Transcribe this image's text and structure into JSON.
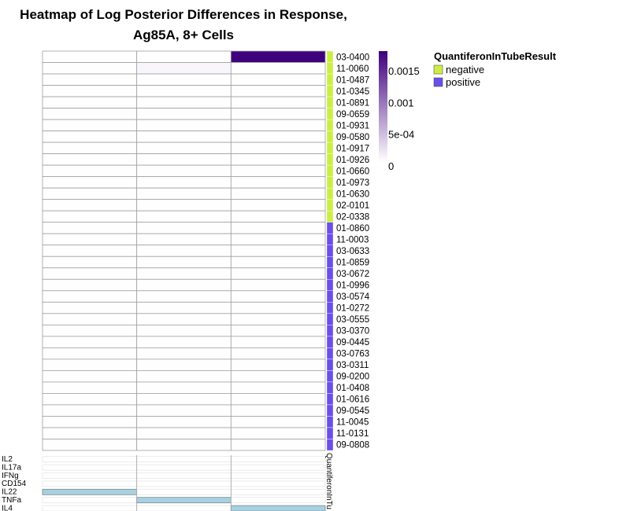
{
  "chart_data": {
    "type": "heatmap",
    "title_lines": [
      "Heatmap of Log Posterior Differences in Response,",
      "Ag85A, 8+ Cells"
    ],
    "rows": [
      "03-0400",
      "11-0060",
      "01-0487",
      "01-0345",
      "01-0891",
      "09-0659",
      "01-0931",
      "09-0580",
      "01-0917",
      "01-0926",
      "01-0660",
      "01-0973",
      "01-0630",
      "02-0101",
      "02-0338",
      "01-0860",
      "11-0003",
      "03-0633",
      "01-0859",
      "03-0672",
      "01-0996",
      "03-0574",
      "01-0272",
      "03-0555",
      "03-0370",
      "09-0445",
      "03-0763",
      "03-0311",
      "09-0200",
      "01-0408",
      "01-0616",
      "09-0545",
      "11-0045",
      "11-0131",
      "09-0808"
    ],
    "row_group": [
      "negative",
      "negative",
      "negative",
      "negative",
      "negative",
      "negative",
      "negative",
      "negative",
      "negative",
      "negative",
      "negative",
      "negative",
      "negative",
      "negative",
      "negative",
      "positive",
      "positive",
      "positive",
      "positive",
      "positive",
      "positive",
      "positive",
      "positive",
      "positive",
      "positive",
      "positive",
      "positive",
      "positive",
      "positive",
      "positive",
      "positive",
      "positive",
      "positive",
      "positive",
      "positive"
    ],
    "columns": 3,
    "values": [
      [
        1e-05,
        1e-05,
        0.00175
      ],
      [
        1e-05,
        6e-05,
        1e-05
      ],
      [
        1e-05,
        1e-05,
        1e-05
      ],
      [
        1e-05,
        1e-05,
        1e-05
      ],
      [
        1e-05,
        1e-05,
        1e-05
      ],
      [
        1e-05,
        1e-05,
        1e-05
      ],
      [
        1e-05,
        1e-05,
        1e-05
      ],
      [
        1e-05,
        1e-05,
        1e-05
      ],
      [
        1e-05,
        1e-05,
        1e-05
      ],
      [
        1e-05,
        1e-05,
        1e-05
      ],
      [
        1e-05,
        1e-05,
        1e-05
      ],
      [
        1e-05,
        1e-05,
        1e-05
      ],
      [
        1e-05,
        1e-05,
        1e-05
      ],
      [
        1e-05,
        1e-05,
        1e-05
      ],
      [
        1e-05,
        1e-05,
        1e-05
      ],
      [
        1e-05,
        1e-05,
        1e-05
      ],
      [
        1e-05,
        1e-05,
        1e-05
      ],
      [
        1e-05,
        1e-05,
        1e-05
      ],
      [
        1e-05,
        1e-05,
        1e-05
      ],
      [
        1e-05,
        1e-05,
        1e-05
      ],
      [
        1e-05,
        1e-05,
        1e-05
      ],
      [
        1e-05,
        1e-05,
        1e-05
      ],
      [
        1e-05,
        1e-05,
        1e-05
      ],
      [
        1e-05,
        1e-05,
        1e-05
      ],
      [
        1e-05,
        1e-05,
        1e-05
      ],
      [
        1e-05,
        1e-05,
        1e-05
      ],
      [
        1e-05,
        1e-05,
        1e-05
      ],
      [
        1e-05,
        1e-05,
        1e-05
      ],
      [
        1e-05,
        1e-05,
        1e-05
      ],
      [
        1e-05,
        1e-05,
        1e-05
      ],
      [
        1e-05,
        1e-05,
        1e-05
      ],
      [
        1e-05,
        1e-05,
        1e-05
      ],
      [
        1e-05,
        1e-05,
        1e-05
      ],
      [
        1e-05,
        1e-05,
        1e-05
      ],
      [
        1e-05,
        1e-05,
        1e-05
      ]
    ],
    "color_range": [
      0,
      0.00175
    ],
    "colorbar_ticks": [
      {
        "label": "0.0015",
        "value": 0.0015
      },
      {
        "label": "0.001",
        "value": 0.001
      },
      {
        "label": "5e-04",
        "value": 0.0005
      },
      {
        "label": "0",
        "value": 0
      }
    ],
    "cytokines": [
      "IL2",
      "IL17a",
      "IFNg",
      "CD154",
      "IL22",
      "TNFa",
      "IL4"
    ],
    "cytokine_matrix": [
      [
        0,
        0,
        0
      ],
      [
        0,
        0,
        0
      ],
      [
        0,
        0,
        0
      ],
      [
        0,
        0,
        0
      ],
      [
        1,
        0,
        0
      ],
      [
        0,
        1,
        0
      ],
      [
        0,
        0,
        1
      ]
    ],
    "annotation_name": "QuantiferonInTu",
    "legend": {
      "title": "QuantiferonInTubeResult",
      "entries": [
        {
          "label": "negative",
          "color": "#CCEE44"
        },
        {
          "label": "positive",
          "color": "#6A4FE8"
        }
      ]
    },
    "colors": {
      "low": "#FFFFFF",
      "high": "#3F007D",
      "cytokine_on": "#A8D0E0",
      "cytokine_off": "#E6E6E6",
      "grid": "#A0A0A0"
    }
  }
}
